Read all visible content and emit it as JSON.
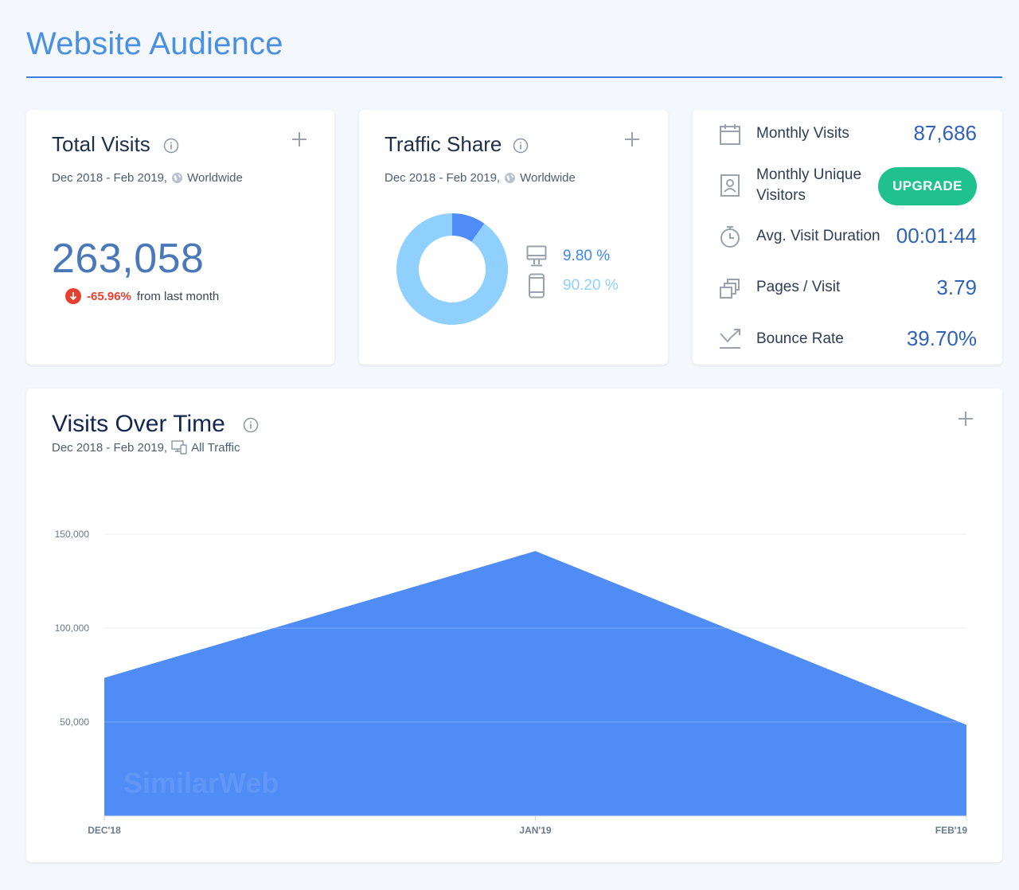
{
  "page": {
    "title": "Website Audience"
  },
  "total_visits": {
    "title": "Total Visits",
    "date_range": "Dec 2018 - Feb 2019,",
    "region": "Worldwide",
    "value": "263,058",
    "change_pct": "-65.96%",
    "change_text": "from last month",
    "icons": [
      "info-icon",
      "plus-icon",
      "globe-icon",
      "arrow-down-icon"
    ]
  },
  "traffic_share": {
    "title": "Traffic Share",
    "date_range": "Dec 2018 - Feb 2019,",
    "region": "Worldwide",
    "desktop_pct_label": "9.80 %",
    "mobile_pct_label": "90.20 %",
    "desktop_fraction": 0.098,
    "mobile_fraction": 0.902,
    "colors": {
      "desktop": "#4f8cf5",
      "mobile": "#8fd0ff"
    },
    "icons": [
      "info-icon",
      "plus-icon",
      "globe-icon",
      "desktop-icon",
      "mobile-icon"
    ]
  },
  "metrics": {
    "monthly_visits": {
      "label": "Monthly Visits",
      "value": "87,686"
    },
    "unique_visitors": {
      "label": "Monthly Unique Visitors",
      "button": "UPGRADE"
    },
    "visit_duration": {
      "label": "Avg. Visit Duration",
      "value": "00:01:44"
    },
    "pages_per_visit": {
      "label": "Pages / Visit",
      "value": "3.79"
    },
    "bounce_rate": {
      "label": "Bounce Rate",
      "value": "39.70%"
    },
    "icons": [
      "calendar-icon",
      "id-card-icon",
      "stopwatch-icon",
      "pages-icon",
      "bounce-icon"
    ],
    "colors": {
      "upgrade": "#1fc28c",
      "value": "#3063b6"
    }
  },
  "visits_over_time": {
    "title": "Visits Over Time",
    "date_range": "Dec 2018 - Feb 2019,",
    "traffic": "All Traffic",
    "watermark": "SimilarWeb",
    "icons": [
      "info-icon",
      "plus-icon",
      "devices-icon"
    ]
  },
  "chart_data": {
    "type": "area",
    "categories": [
      "DEC'18",
      "JAN'19",
      "FEB'19"
    ],
    "values": [
      73500,
      141000,
      48500
    ],
    "ylim": [
      0,
      150000
    ],
    "yticks": [
      50000,
      100000,
      150000
    ],
    "ytick_labels": [
      "50,000",
      "100,000",
      "150,000"
    ],
    "grid": true,
    "color": "#4f8cf5"
  }
}
